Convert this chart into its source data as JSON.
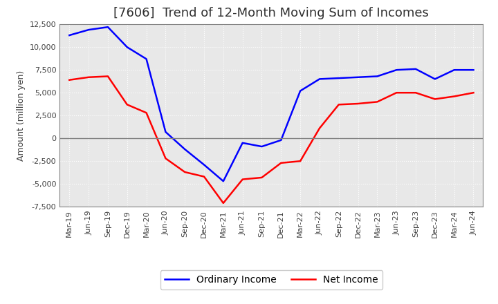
{
  "title": "[7606]  Trend of 12-Month Moving Sum of Incomes",
  "ylabel": "Amount (million yen)",
  "ylim": [
    -7500,
    12500
  ],
  "yticks": [
    -7500,
    -5000,
    -2500,
    0,
    2500,
    5000,
    7500,
    10000,
    12500
  ],
  "x_labels": [
    "Mar-19",
    "Jun-19",
    "Sep-19",
    "Dec-19",
    "Mar-20",
    "Jun-20",
    "Sep-20",
    "Dec-20",
    "Mar-21",
    "Jun-21",
    "Sep-21",
    "Dec-21",
    "Mar-22",
    "Jun-22",
    "Sep-22",
    "Dec-22",
    "Mar-23",
    "Jun-23",
    "Sep-23",
    "Dec-23",
    "Mar-24",
    "Jun-24"
  ],
  "ordinary_income": [
    11300,
    11900,
    12200,
    10000,
    8700,
    700,
    -1200,
    -2900,
    -4700,
    -500,
    -900,
    -200,
    5200,
    6500,
    6600,
    6700,
    6800,
    7500,
    7600,
    6500,
    7500,
    7500
  ],
  "net_income": [
    6400,
    6700,
    6800,
    3700,
    2800,
    -2200,
    -3700,
    -4200,
    -7100,
    -4500,
    -4300,
    -2700,
    -2500,
    1100,
    3700,
    3800,
    4000,
    5000,
    5000,
    4300,
    4600,
    5000
  ],
  "ordinary_color": "#0000ff",
  "net_color": "#ff0000",
  "bg_color": "#ffffff",
  "plot_bg_color": "#e8e8e8",
  "grid_color": "#ffffff",
  "zero_line_color": "#808080",
  "linewidth": 1.8,
  "title_fontsize": 13,
  "axis_fontsize": 9,
  "tick_fontsize": 8,
  "legend_fontsize": 10
}
